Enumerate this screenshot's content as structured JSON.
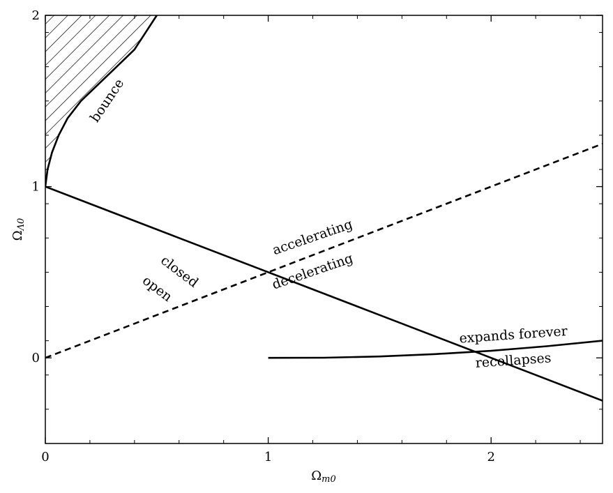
{
  "chart_data": {
    "type": "line",
    "title": "",
    "xlabel": "Ω",
    "xlabel_sub": "m0",
    "ylabel": "Ω",
    "ylabel_sub": "Λ0",
    "xlim": [
      0,
      2.5
    ],
    "ylim": [
      -0.5,
      2
    ],
    "xticks": [
      0,
      1,
      2
    ],
    "xtick_labels": [
      "0",
      "1",
      "2"
    ],
    "yticks": [
      0,
      1,
      2
    ],
    "ytick_labels": [
      "0",
      "1",
      "2"
    ],
    "x_minor_step": 0.2,
    "y_minor_step": 0.2,
    "grid": false,
    "legend": "none",
    "series": [
      {
        "style": "solid",
        "points": [
          [
            0,
            1
          ],
          [
            0.5,
            0.75
          ],
          [
            1,
            0.5
          ],
          [
            1.5,
            0.25
          ],
          [
            2,
            0
          ],
          [
            2.5,
            -0.25
          ],
          [
            3,
            -0.5
          ]
        ]
      },
      {
        "style": "dashed",
        "points": [
          [
            0,
            0
          ],
          [
            0.5,
            0.25
          ],
          [
            1,
            0.5
          ],
          [
            1.5,
            0.75
          ],
          [
            2,
            1
          ],
          [
            2.5,
            1.25
          ]
        ]
      },
      {
        "style": "solid",
        "points": [
          [
            1,
            0
          ],
          [
            1.25,
            0.001
          ],
          [
            1.5,
            0.008
          ],
          [
            1.75,
            0.022
          ],
          [
            2,
            0.041
          ],
          [
            2.25,
            0.068
          ],
          [
            2.5,
            0.1
          ]
        ]
      },
      {
        "style": "solid",
        "hatched_region": "left",
        "points": [
          [
            0,
            1
          ],
          [
            0.01,
            1.1
          ],
          [
            0.03,
            1.2
          ],
          [
            0.06,
            1.3
          ],
          [
            0.1,
            1.4
          ],
          [
            0.16,
            1.5
          ],
          [
            0.24,
            1.6
          ],
          [
            0.32,
            1.7
          ],
          [
            0.4,
            1.8
          ],
          [
            0.45,
            1.9
          ],
          [
            0.5,
            2
          ]
        ]
      }
    ],
    "annotations": [
      {
        "text": "bounce",
        "x": 0.28,
        "y": 1.5,
        "angle": -56
      },
      {
        "text": "accelerating",
        "x": 1.2,
        "y": 0.7,
        "angle": -19
      },
      {
        "text": "decelerating",
        "x": 1.2,
        "y": 0.5,
        "angle": -19
      },
      {
        "text": "closed",
        "x": 0.6,
        "y": 0.5,
        "angle": 37
      },
      {
        "text": "open",
        "x": 0.5,
        "y": 0.4,
        "angle": 37
      },
      {
        "text": "expands forever",
        "x": 2.1,
        "y": 0.13,
        "angle": -4
      },
      {
        "text": "recollapses",
        "x": 2.1,
        "y": -0.02,
        "angle": -4
      }
    ]
  }
}
